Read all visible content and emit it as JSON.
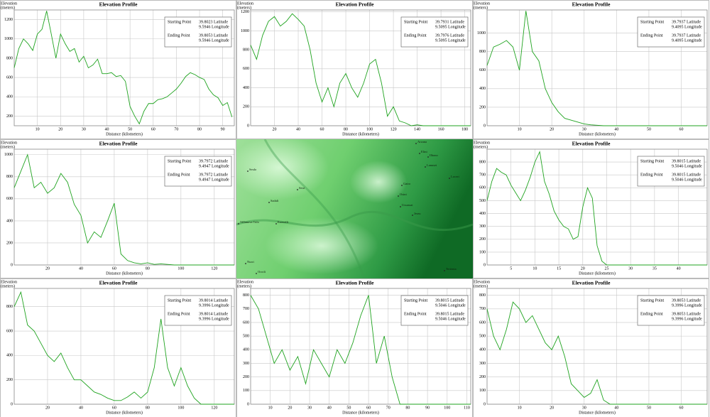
{
  "chart_data": [
    {
      "type": "line",
      "title": "Elevation Profile",
      "y_label": [
        "Elevation",
        "(meters)"
      ],
      "x_label": "Distance (kilometers)",
      "color": "#1fa31f",
      "grid": true,
      "legend": [
        [
          "Starting Point",
          "39.8023 Latitude",
          "9.5946 Longitude"
        ],
        [
          "Ending Point",
          "39.8053 Latitude",
          "9.5946 Longitude"
        ]
      ],
      "xlim": [
        0,
        95
      ],
      "xticks": [
        10,
        20,
        30,
        40,
        50,
        60,
        70,
        80,
        90
      ],
      "ylim": [
        100,
        1300
      ],
      "yticks": [
        200,
        400,
        600,
        800,
        1000,
        1200
      ],
      "x": [
        0,
        2,
        4,
        6,
        8,
        10,
        12,
        14,
        16,
        18,
        20,
        22,
        24,
        26,
        28,
        30,
        32,
        34,
        36,
        38,
        40,
        42,
        44,
        46,
        48,
        50,
        52,
        54,
        56,
        58,
        60,
        62,
        64,
        66,
        68,
        70,
        72,
        74,
        76,
        78,
        80,
        82,
        84,
        86,
        88,
        90,
        92,
        94
      ],
      "values": [
        700,
        900,
        1000,
        950,
        880,
        1050,
        1100,
        1290,
        1050,
        800,
        1050,
        950,
        870,
        900,
        760,
        820,
        700,
        730,
        790,
        640,
        640,
        650,
        610,
        620,
        560,
        300,
        200,
        120,
        250,
        330,
        330,
        370,
        380,
        400,
        440,
        480,
        540,
        610,
        650,
        630,
        600,
        580,
        480,
        420,
        390,
        310,
        340,
        190
      ]
    },
    {
      "type": "line",
      "title": "Elevation Profile",
      "y_label": [
        "Elevation",
        "(meters)"
      ],
      "x_label": "Distance (kilometers)",
      "color": "#1fa31f",
      "grid": true,
      "legend": [
        [
          "Starting Point",
          "39.7931 Latitude",
          "9.5095 Longitude"
        ],
        [
          "Ending Point",
          "39.7976 Latitude",
          "9.5095 Longitude"
        ]
      ],
      "xlim": [
        0,
        185
      ],
      "xticks": [
        20,
        40,
        60,
        80,
        100,
        120,
        140,
        160,
        180
      ],
      "ylim": [
        0,
        1220
      ],
      "yticks": [
        0,
        200,
        400,
        600,
        800,
        1000,
        1200
      ],
      "x": [
        0,
        5,
        10,
        15,
        20,
        25,
        30,
        35,
        40,
        45,
        50,
        55,
        60,
        65,
        70,
        75,
        80,
        85,
        90,
        95,
        100,
        105,
        110,
        115,
        120,
        125,
        130,
        135,
        140,
        145,
        150,
        155,
        160,
        165,
        170,
        175,
        180,
        185
      ],
      "values": [
        850,
        700,
        950,
        1100,
        1150,
        1050,
        1100,
        1180,
        1120,
        1050,
        800,
        450,
        250,
        400,
        200,
        450,
        550,
        400,
        300,
        450,
        650,
        700,
        450,
        100,
        200,
        50,
        30,
        0,
        10,
        0,
        0,
        0,
        0,
        0,
        0,
        0,
        0,
        0
      ]
    },
    {
      "type": "line",
      "title": "Elevation Profile",
      "y_label": [
        "Elevation",
        "(meters)"
      ],
      "x_label": "Distance (kilometers)",
      "color": "#1fa31f",
      "grid": true,
      "legend": [
        [
          "Starting Point",
          "39.7937 Latitude",
          "9.4095 Longitude"
        ],
        [
          "Ending Point",
          "39.7937 Latitude",
          "9.4095 Longitude"
        ]
      ],
      "xlim": [
        0,
        68
      ],
      "xticks": [
        10,
        20,
        30,
        40,
        50,
        60
      ],
      "ylim": [
        0,
        1250
      ],
      "yticks": [
        0,
        200,
        400,
        600,
        800,
        1000
      ],
      "x": [
        0,
        2,
        4,
        6,
        8,
        10,
        12,
        14,
        16,
        18,
        20,
        22,
        24,
        26,
        28,
        30,
        32,
        34,
        36,
        38,
        40,
        42,
        44,
        46,
        48,
        50,
        52,
        54,
        56,
        58,
        60,
        62,
        64,
        66,
        68
      ],
      "values": [
        650,
        850,
        880,
        920,
        850,
        600,
        1240,
        800,
        700,
        400,
        250,
        150,
        80,
        60,
        40,
        20,
        10,
        5,
        0,
        0,
        0,
        0,
        0,
        0,
        0,
        0,
        0,
        0,
        0,
        0,
        0,
        0,
        0,
        0,
        0
      ]
    },
    {
      "type": "line",
      "title": "Elevation Profile",
      "y_label": [
        "Elevation",
        "(meters)"
      ],
      "x_label": "Distance (kilometers)",
      "color": "#1fa31f",
      "grid": true,
      "legend": [
        [
          "Starting Point",
          "39.7972 Latitude",
          "9.4947 Longitude"
        ],
        [
          "Ending Point",
          "39.7972 Latitude",
          "9.4947 Longitude"
        ]
      ],
      "xlim": [
        0,
        132
      ],
      "xticks": [
        20,
        40,
        60,
        80,
        100,
        120
      ],
      "ylim": [
        0,
        1050
      ],
      "yticks": [
        0,
        200,
        400,
        600,
        800,
        1000
      ],
      "x": [
        0,
        4,
        8,
        12,
        16,
        20,
        24,
        28,
        32,
        36,
        40,
        44,
        48,
        52,
        56,
        60,
        64,
        68,
        72,
        76,
        80,
        84,
        88,
        92,
        96,
        100,
        104,
        108,
        112,
        116,
        120,
        124,
        128,
        132
      ],
      "values": [
        700,
        850,
        1000,
        700,
        750,
        650,
        700,
        830,
        750,
        550,
        450,
        200,
        300,
        250,
        400,
        560,
        100,
        40,
        20,
        10,
        20,
        5,
        10,
        5,
        0,
        0,
        0,
        0,
        0,
        0,
        0,
        0,
        0,
        0
      ]
    },
    {
      "type": "line",
      "title": "Elevation Profile",
      "y_label": [
        "Elevation",
        "(meters)"
      ],
      "x_label": "Distance (kilometers)",
      "color": "#1fa31f",
      "grid": true,
      "legend": [
        [
          "Starting Point",
          "39.8015 Latitude",
          "9.5046 Longitude"
        ],
        [
          "Ending Point",
          "39.8015 Latitude",
          "9.5046 Longitude"
        ]
      ],
      "xlim": [
        0,
        46
      ],
      "xticks": [
        5,
        10,
        15,
        20,
        25,
        30,
        35,
        40
      ],
      "ylim": [
        0,
        900
      ],
      "yticks": [
        0,
        100,
        200,
        300,
        400,
        500,
        600,
        700,
        800
      ],
      "x": [
        0,
        1,
        2,
        3,
        4,
        5,
        6,
        7,
        8,
        9,
        10,
        11,
        12,
        13,
        14,
        15,
        16,
        17,
        18,
        19,
        20,
        21,
        22,
        23,
        24,
        25,
        26,
        27,
        28,
        29,
        30,
        31,
        32,
        33,
        34,
        35,
        36,
        37,
        38,
        39,
        40,
        41,
        42,
        43,
        44,
        45,
        46
      ],
      "values": [
        500,
        650,
        750,
        720,
        700,
        620,
        560,
        500,
        580,
        680,
        800,
        880,
        650,
        550,
        420,
        350,
        300,
        280,
        200,
        220,
        450,
        600,
        520,
        150,
        30,
        0,
        0,
        0,
        0,
        0,
        0,
        0,
        0,
        0,
        0,
        0,
        0,
        0,
        0,
        0,
        0,
        0,
        0,
        0,
        0,
        0,
        0
      ]
    },
    {
      "type": "line",
      "title": "Elevation Profile",
      "y_label": [
        "Elevation",
        "(meters)"
      ],
      "x_label": "Distance (kilometers)",
      "color": "#1fa31f",
      "grid": true,
      "legend": [
        [
          "Starting Point",
          "39.8014 Latitude",
          "9.3996 Longitude"
        ],
        [
          "Ending Point",
          "39.8014 Latitude",
          "9.3996 Longitude"
        ]
      ],
      "xlim": [
        0,
        132
      ],
      "xticks": [
        20,
        40,
        60,
        80,
        100,
        120
      ],
      "ylim": [
        0,
        950
      ],
      "yticks": [
        0,
        200,
        400,
        600,
        800
      ],
      "x": [
        0,
        4,
        8,
        12,
        16,
        20,
        24,
        28,
        32,
        36,
        40,
        44,
        48,
        52,
        56,
        60,
        64,
        68,
        72,
        76,
        80,
        84,
        88,
        92,
        96,
        100,
        104,
        108,
        112,
        116,
        120,
        124,
        128,
        132
      ],
      "values": [
        800,
        920,
        650,
        600,
        500,
        400,
        350,
        420,
        300,
        200,
        200,
        150,
        100,
        80,
        50,
        30,
        30,
        60,
        100,
        50,
        100,
        300,
        700,
        300,
        150,
        300,
        150,
        50,
        0,
        0,
        0,
        0,
        0,
        0
      ]
    },
    {
      "type": "line",
      "title": "Elevation Profile",
      "y_label": [
        "Elevation",
        "(meters)"
      ],
      "x_label": "Distance (kilometers)",
      "color": "#1fa31f",
      "grid": true,
      "legend": [
        [
          "Starting Point",
          "39.8015 Latitude",
          "9.5046 Longitude"
        ],
        [
          "Ending Point",
          "39.8015 Latitude",
          "9.5046 Longitude"
        ]
      ],
      "xlim": [
        0,
        112
      ],
      "xticks": [
        10,
        20,
        30,
        40,
        50,
        60,
        70,
        80,
        90,
        100,
        110
      ],
      "ylim": [
        0,
        850
      ],
      "yticks": [
        0,
        100,
        200,
        300,
        400,
        500,
        600,
        700,
        800
      ],
      "x": [
        0,
        4,
        8,
        12,
        16,
        20,
        24,
        28,
        32,
        36,
        40,
        44,
        48,
        52,
        56,
        60,
        64,
        68,
        72,
        76,
        80,
        84,
        88,
        92,
        96,
        100,
        104,
        108,
        112
      ],
      "values": [
        800,
        700,
        500,
        300,
        400,
        250,
        350,
        150,
        400,
        300,
        200,
        400,
        300,
        450,
        650,
        800,
        300,
        500,
        200,
        0,
        0,
        0,
        0,
        0,
        0,
        0,
        0,
        0,
        0
      ]
    },
    {
      "type": "line",
      "title": "Elevation Profile",
      "y_label": [
        "Elevation",
        "(meters)"
      ],
      "x_label": "Distance (kilometers)",
      "color": "#1fa31f",
      "grid": true,
      "legend": [
        [
          "Starting Point",
          "39.8053 Latitude",
          "9.3996 Longitude"
        ],
        [
          "Ending Point",
          "39.8053 Latitude",
          "9.3996 Longitude"
        ]
      ],
      "xlim": [
        0,
        68
      ],
      "xticks": [
        10,
        20,
        30,
        40,
        50,
        60
      ],
      "ylim": [
        0,
        850
      ],
      "yticks": [
        0,
        100,
        200,
        300,
        400,
        500,
        600,
        700,
        800
      ],
      "x": [
        0,
        2,
        4,
        6,
        8,
        10,
        12,
        14,
        16,
        18,
        20,
        22,
        24,
        26,
        28,
        30,
        32,
        34,
        36,
        38,
        40,
        42,
        44,
        46,
        48,
        50,
        52,
        54,
        56,
        58,
        60,
        62,
        64,
        66,
        68
      ],
      "values": [
        700,
        500,
        400,
        550,
        750,
        700,
        600,
        650,
        550,
        450,
        400,
        500,
        350,
        150,
        100,
        50,
        80,
        180,
        30,
        0,
        0,
        0,
        0,
        0,
        0,
        0,
        0,
        0,
        0,
        0,
        0,
        0,
        0,
        0,
        0
      ]
    }
  ],
  "map": {
    "labels": [
      "Arzana",
      "Elini",
      "Ilbono",
      "Lanusei",
      "Loceri",
      "Seulo",
      "Seui",
      "Gairo",
      "Osini",
      "Ussassai",
      "Sadali",
      "Villanova Tulo",
      "Esterzili",
      "Jerzu",
      "Nurri",
      "Orroli",
      "Tertenia"
    ]
  }
}
